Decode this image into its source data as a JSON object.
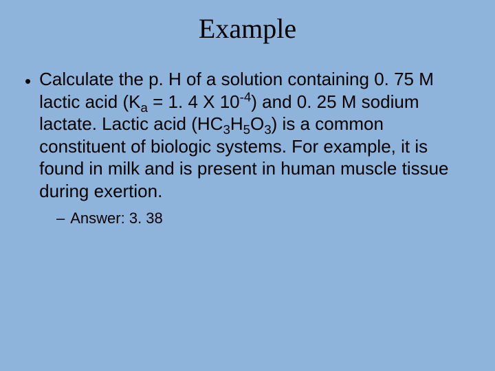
{
  "background_color": "#8fb4dc",
  "text_color": "#000000",
  "title": {
    "text": "Example",
    "font_family": "Times New Roman",
    "font_size_pt": 40
  },
  "bullet": {
    "marker": "•",
    "font_size_pt": 26,
    "parts": {
      "p1": "Calculate the p. H of a solution containing 0. 75 M lactic acid (K",
      "sub_a": "a",
      "p2": " = 1. 4 X 10",
      "sup_neg4": "-4",
      "p3": ") and 0. 25 M sodium lactate.  Lactic acid (HC",
      "sub_3a": "3",
      "p4": "H",
      "sub_5": "5",
      "p5": "O",
      "sub_3b": "3",
      "p6": ") is a common constituent of biologic systems.  For example, it is found in milk and is present in human muscle tissue during exertion."
    }
  },
  "answer": {
    "marker": "–",
    "label": "Answer: ",
    "value": "3. 38",
    "font_size_pt": 22
  }
}
